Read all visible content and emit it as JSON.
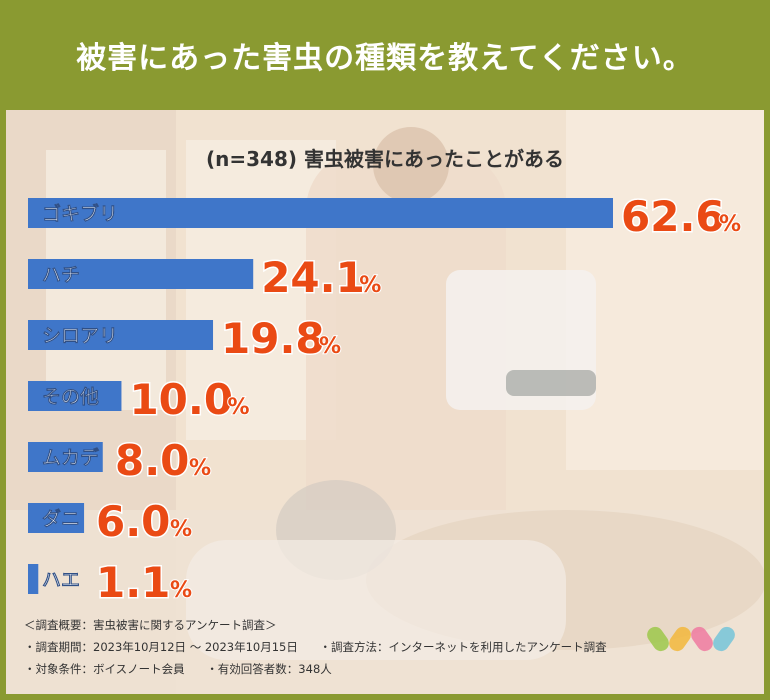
{
  "title": "被害にあった害虫の種類を教えてください。",
  "chart_data": {
    "type": "bar",
    "orientation": "horizontal",
    "title": "(n=348) 害虫被害にあったことがある",
    "categories": [
      "ゴキブリ",
      "ハチ",
      "シロアリ",
      "その他",
      "ムカデ",
      "ダニ",
      "ハエ"
    ],
    "values": [
      62.6,
      24.1,
      19.8,
      10.0,
      8.0,
      6.0,
      1.1
    ],
    "unit": "%",
    "value_labels": [
      "62.6",
      "24.1",
      "19.8",
      "10.0",
      "8.0",
      "6.0",
      "1.1"
    ],
    "bar_color": "#3f76c9",
    "label_color": "#ea4a14"
  },
  "survey": {
    "overview": "＜調査概要：害虫被害に関するアンケート調査＞",
    "period": "・調査期間：2023年10月12日 〜 2023年10月15日",
    "method": "・調査方法：インターネットを利用したアンケート調査",
    "target": "・対象条件：ボイスノート会員",
    "respondents": "・有効回答者数：348人"
  }
}
